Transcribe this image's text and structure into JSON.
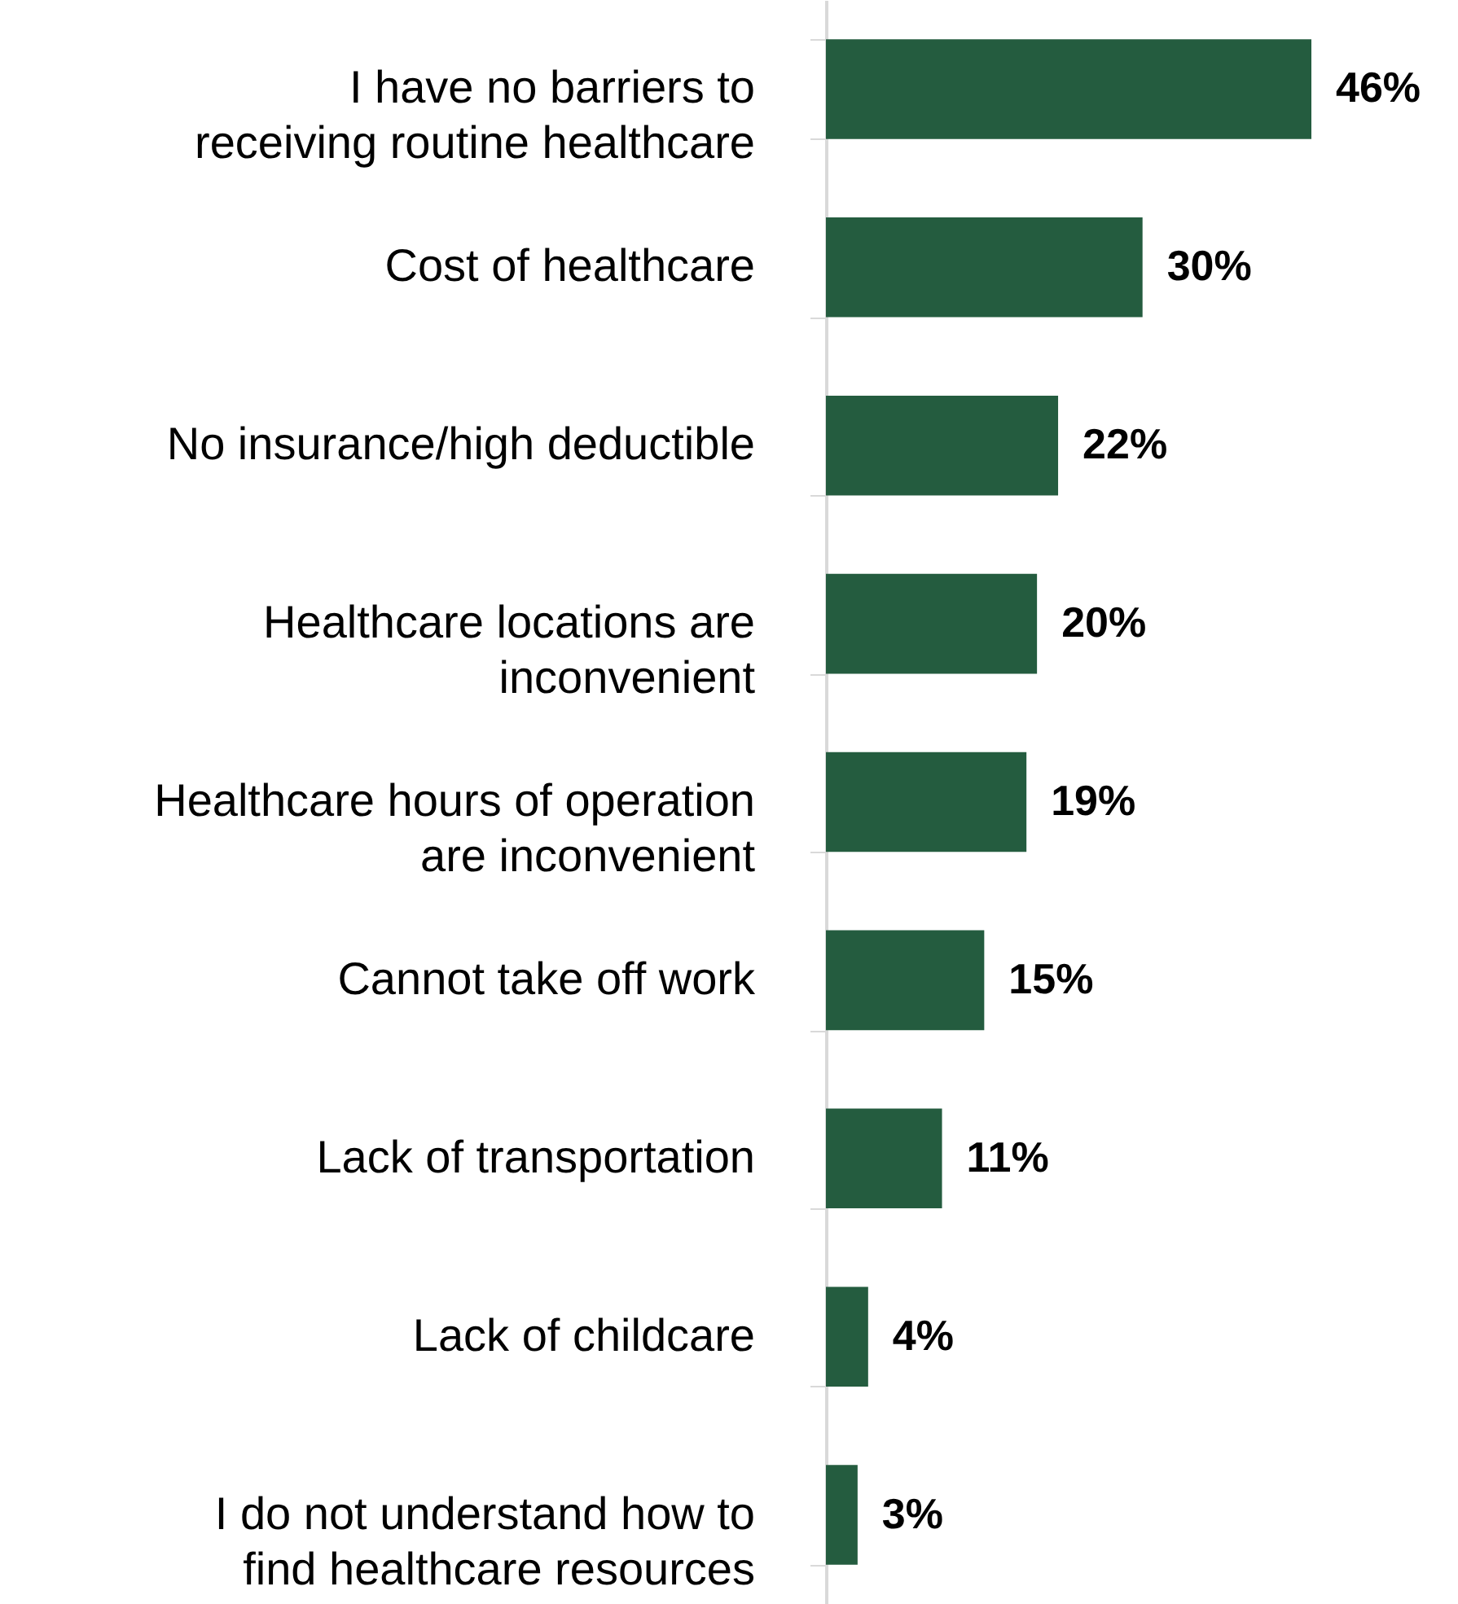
{
  "chart_data": {
    "type": "bar",
    "orientation": "horizontal",
    "categories": [
      "I have no barriers to receiving routine healthcare",
      "Cost of healthcare",
      "No insurance/high deductible",
      "Healthcare locations are inconvenient",
      "Healthcare hours of operation are inconvenient",
      "Cannot take off work",
      "Lack of transportation",
      "Lack of childcare",
      "I do not understand how to find healthcare resources"
    ],
    "values": [
      46,
      30,
      22,
      20,
      19,
      15,
      11,
      4,
      3
    ],
    "value_labels": [
      "46%",
      "30%",
      "22%",
      "20%",
      "19%",
      "15%",
      "11%",
      "4%",
      "3%"
    ],
    "color": "#245c3f"
  }
}
